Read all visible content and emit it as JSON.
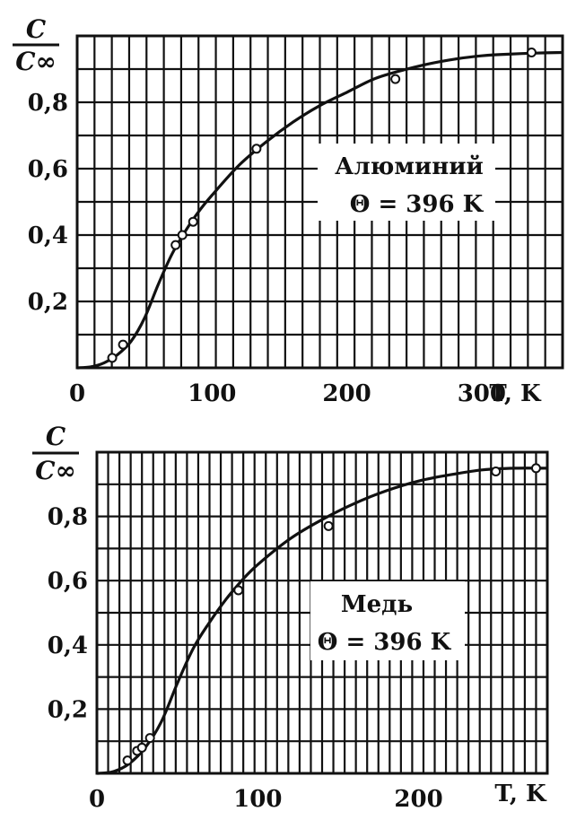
{
  "chart_data": [
    {
      "type": "line",
      "title": "",
      "ylabel_num": "C",
      "ylabel_den": "C∞",
      "xlabel": "T, K",
      "xlim": [
        0,
        360
      ],
      "ylim": [
        0,
        1.0
      ],
      "x_ticks": [
        "0",
        "100",
        "200",
        "300"
      ],
      "x_tick_values": [
        0,
        100,
        200,
        300
      ],
      "y_ticks": [
        "0,2",
        "0,4",
        "0,6",
        "0,8"
      ],
      "y_tick_values": [
        0.2,
        0.4,
        0.6,
        0.8
      ],
      "grid": true,
      "annotation": [
        "Алюминий",
        "Θ = 396 K"
      ],
      "series": [
        {
          "curve": {
            "x": [
              0,
              10,
              20,
              30,
              40,
              50,
              60,
              70,
              80,
              90,
              100,
              120,
              140,
              160,
              180,
              200,
              220,
              240,
              260,
              280,
              300,
              320,
              340,
              360
            ],
            "y": [
              0.0,
              0.003,
              0.015,
              0.04,
              0.08,
              0.15,
              0.25,
              0.34,
              0.41,
              0.47,
              0.52,
              0.61,
              0.68,
              0.74,
              0.79,
              0.83,
              0.87,
              0.895,
              0.915,
              0.93,
              0.94,
              0.945,
              0.948,
              0.95
            ]
          },
          "points": {
            "x": [
              26,
              34,
              73,
              78,
              86,
              133,
              236,
              337
            ],
            "y": [
              0.03,
              0.07,
              0.37,
              0.4,
              0.44,
              0.66,
              0.87,
              0.95
            ]
          }
        }
      ]
    },
    {
      "type": "line",
      "title": "",
      "ylabel_num": "C",
      "ylabel_den": "C∞",
      "xlabel": "T, K",
      "xlim": [
        0,
        280
      ],
      "ylim": [
        0,
        1.0
      ],
      "x_ticks": [
        "0",
        "100",
        "200"
      ],
      "x_tick_values": [
        0,
        100,
        200
      ],
      "y_ticks": [
        "0,2",
        "0,4",
        "0,6",
        "0,8"
      ],
      "y_tick_values": [
        0.2,
        0.4,
        0.6,
        0.8
      ],
      "grid": true,
      "annotation": [
        "Медь",
        "Θ = 396 K"
      ],
      "series": [
        {
          "curve": {
            "x": [
              0,
              10,
              20,
              30,
              40,
              50,
              60,
              70,
              80,
              90,
              100,
              120,
              140,
              160,
              180,
              200,
              220,
              240,
              260,
              280
            ],
            "y": [
              0.0,
              0.005,
              0.03,
              0.08,
              0.16,
              0.28,
              0.39,
              0.47,
              0.54,
              0.6,
              0.65,
              0.73,
              0.79,
              0.84,
              0.88,
              0.91,
              0.93,
              0.945,
              0.95,
              0.95
            ]
          },
          "points": {
            "x": [
              19,
              25,
              28,
              33,
              88,
              144,
              248,
              273
            ],
            "y": [
              0.04,
              0.07,
              0.08,
              0.11,
              0.57,
              0.77,
              0.94,
              0.95
            ]
          }
        }
      ]
    }
  ]
}
